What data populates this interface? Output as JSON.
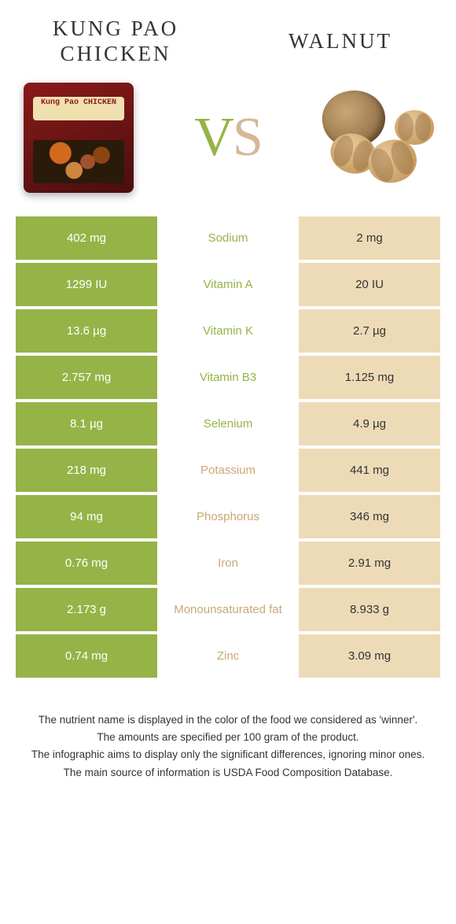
{
  "header": {
    "food_a_title": "KUNG PAO CHICKEN",
    "food_b_title": "WALNUT",
    "vs_v": "V",
    "vs_s": "S",
    "package_label": "Kung Pao CHICKEN"
  },
  "colors": {
    "green": "#96b347",
    "tan": "#eddbb8",
    "tan_text": "#c9a876"
  },
  "rows": [
    {
      "nutrient": "Sodium",
      "left": "402 mg",
      "right": "2 mg",
      "winner": "green"
    },
    {
      "nutrient": "Vitamin A",
      "left": "1299 IU",
      "right": "20 IU",
      "winner": "green"
    },
    {
      "nutrient": "Vitamin K",
      "left": "13.6 µg",
      "right": "2.7 µg",
      "winner": "green"
    },
    {
      "nutrient": "Vitamin B3",
      "left": "2.757 mg",
      "right": "1.125 mg",
      "winner": "green"
    },
    {
      "nutrient": "Selenium",
      "left": "8.1 µg",
      "right": "4.9 µg",
      "winner": "green"
    },
    {
      "nutrient": "Potassium",
      "left": "218 mg",
      "right": "441 mg",
      "winner": "tan"
    },
    {
      "nutrient": "Phosphorus",
      "left": "94 mg",
      "right": "346 mg",
      "winner": "tan"
    },
    {
      "nutrient": "Iron",
      "left": "0.76 mg",
      "right": "2.91 mg",
      "winner": "tan"
    },
    {
      "nutrient": "Monounsaturated fat",
      "left": "2.173 g",
      "right": "8.933 g",
      "winner": "tan"
    },
    {
      "nutrient": "Zinc",
      "left": "0.74 mg",
      "right": "3.09 mg",
      "winner": "tan"
    }
  ],
  "footnotes": [
    "The nutrient name is displayed in the color of the food we considered as 'winner'.",
    "The amounts are specified per 100 gram of the product.",
    "The infographic aims to display only the significant differences, ignoring minor ones.",
    "The main source of information is USDA Food Composition Database."
  ]
}
